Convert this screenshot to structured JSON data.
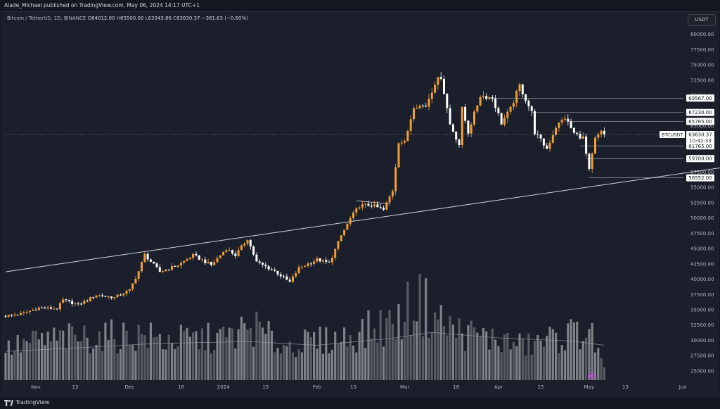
{
  "header": {
    "publisher": "Alade_Michael published on TradingView.com, May 06, 2024 14:17 UTC+1"
  },
  "legend": {
    "symbol": "Bitcoin / TetherUS, 1D, BINANCE",
    "open_label": "O",
    "open": "64012.00",
    "high_label": "H",
    "high": "65500.00",
    "low_label": "L",
    "low": "63343.86",
    "close_label": "C",
    "close": "63630.37",
    "change": "−381.63 (−0.60%)"
  },
  "currency_button": "USDT",
  "footer": {
    "brand": "TradingView"
  },
  "colors": {
    "background": "#1b1f2b",
    "up_candle": "#f0a033",
    "down_candle": "#ffffff",
    "volume_bar": "#8a8c92",
    "trendline": "#d1d4dc"
  },
  "chart_data": {
    "type": "candlestick",
    "title": "Bitcoin / TetherUS, 1D, BINANCE",
    "ylim": [
      23500,
      81000
    ],
    "y_ticks": [
      25000,
      27500,
      30000,
      32500,
      35000,
      37500,
      40000,
      42500,
      45000,
      47500,
      50000,
      52500,
      55000,
      57500,
      60000,
      62500,
      65000,
      67500,
      70000,
      72500,
      75000,
      77500,
      80000
    ],
    "x_ticks": [
      "Nov",
      "13",
      "Dec",
      "18",
      "2024",
      "15",
      "Feb",
      "13",
      "Mar",
      "18",
      "Apr",
      "15",
      "May",
      "13",
      "Jun"
    ],
    "price_labels": [
      {
        "symbol": "BTCUSDT",
        "value": "63630.37",
        "countdown": "10:42:33"
      },
      {
        "value": "69567.00"
      },
      {
        "value": "67230.00"
      },
      {
        "value": "65765.00"
      },
      {
        "value": "61765.00"
      },
      {
        "value": "59700.00"
      },
      {
        "value": "56552.00"
      }
    ],
    "support_resistance_levels": [
      69567,
      67230,
      65765,
      61765,
      59700,
      56552
    ],
    "current_price": 63630.37,
    "trendline": {
      "from": {
        "date": "2023-10-21",
        "price": 41200
      },
      "to": {
        "date": "2024-06-22",
        "price": 58800
      }
    },
    "start_date": "2023-10-21",
    "close_path": [
      [
        "2023-10-21",
        34000
      ],
      [
        "2023-10-26",
        34300
      ],
      [
        "2023-11-01",
        35300
      ],
      [
        "2023-11-07",
        35200
      ],
      [
        "2023-11-09",
        36600
      ],
      [
        "2023-11-14",
        35800
      ],
      [
        "2023-11-20",
        37400
      ],
      [
        "2023-11-26",
        37000
      ],
      [
        "2023-12-01",
        38200
      ],
      [
        "2023-12-04",
        41300
      ],
      [
        "2023-12-06",
        44000
      ],
      [
        "2023-12-11",
        41200
      ],
      [
        "2023-12-17",
        42300
      ],
      [
        "2023-12-22",
        43900
      ],
      [
        "2023-12-28",
        42300
      ],
      [
        "2024-01-02",
        45000
      ],
      [
        "2024-01-05",
        43900
      ],
      [
        "2024-01-09",
        46600
      ],
      [
        "2024-01-12",
        42800
      ],
      [
        "2024-01-18",
        41300
      ],
      [
        "2024-01-23",
        39500
      ],
      [
        "2024-01-26",
        41800
      ],
      [
        "2024-02-01",
        43200
      ],
      [
        "2024-02-05",
        42600
      ],
      [
        "2024-02-09",
        47100
      ],
      [
        "2024-02-12",
        49900
      ],
      [
        "2024-02-15",
        52000
      ],
      [
        "2024-02-19",
        52100
      ],
      [
        "2024-02-23",
        51300
      ],
      [
        "2024-02-26",
        54500
      ],
      [
        "2024-02-28",
        62500
      ],
      [
        "2024-03-01",
        62300
      ],
      [
        "2024-03-04",
        68300
      ],
      [
        "2024-03-08",
        68300
      ],
      [
        "2024-03-11",
        72100
      ],
      [
        "2024-03-13",
        73100
      ],
      [
        "2024-03-16",
        65300
      ],
      [
        "2024-03-19",
        62000
      ],
      [
        "2024-03-20",
        67800
      ],
      [
        "2024-03-22",
        64000
      ],
      [
        "2024-03-26",
        70000
      ],
      [
        "2024-03-30",
        69600
      ],
      [
        "2024-04-02",
        65500
      ],
      [
        "2024-04-05",
        67800
      ],
      [
        "2024-04-08",
        71600
      ],
      [
        "2024-04-12",
        67200
      ],
      [
        "2024-04-13",
        64000
      ],
      [
        "2024-04-17",
        61300
      ],
      [
        "2024-04-20",
        64900
      ],
      [
        "2024-04-23",
        66400
      ],
      [
        "2024-04-26",
        63800
      ],
      [
        "2024-04-29",
        63100
      ],
      [
        "2024-05-01",
        57700
      ],
      [
        "2024-05-03",
        62900
      ],
      [
        "2024-05-05",
        64000
      ],
      [
        "2024-05-06",
        63630
      ]
    ],
    "volume_ylim": [
      23500,
      81000
    ],
    "volume_path": [
      [
        "2023-10-21",
        29000
      ],
      [
        "2023-11-01",
        30500
      ],
      [
        "2023-11-14",
        31000
      ],
      [
        "2023-12-06",
        31500
      ],
      [
        "2023-12-11",
        30500
      ],
      [
        "2024-01-02",
        31000
      ],
      [
        "2024-01-11",
        33000
      ],
      [
        "2024-01-20",
        29500
      ],
      [
        "2024-02-10",
        31000
      ],
      [
        "2024-02-28",
        34000
      ],
      [
        "2024-03-05",
        38000
      ],
      [
        "2024-03-15",
        33000
      ],
      [
        "2024-03-20",
        32000
      ],
      [
        "2024-04-10",
        29500
      ],
      [
        "2024-04-20",
        31000
      ],
      [
        "2024-05-01",
        32500
      ],
      [
        "2024-05-06",
        25500
      ]
    ],
    "volume_ma_path": [
      [
        "2023-10-21",
        28200
      ],
      [
        "2023-11-15",
        28800
      ],
      [
        "2023-12-10",
        29500
      ],
      [
        "2024-01-10",
        29800
      ],
      [
        "2024-02-01",
        29200
      ],
      [
        "2024-02-25",
        30300
      ],
      [
        "2024-03-10",
        31300
      ],
      [
        "2024-04-01",
        30400
      ],
      [
        "2024-04-25",
        29900
      ],
      [
        "2024-05-06",
        29200
      ]
    ]
  }
}
